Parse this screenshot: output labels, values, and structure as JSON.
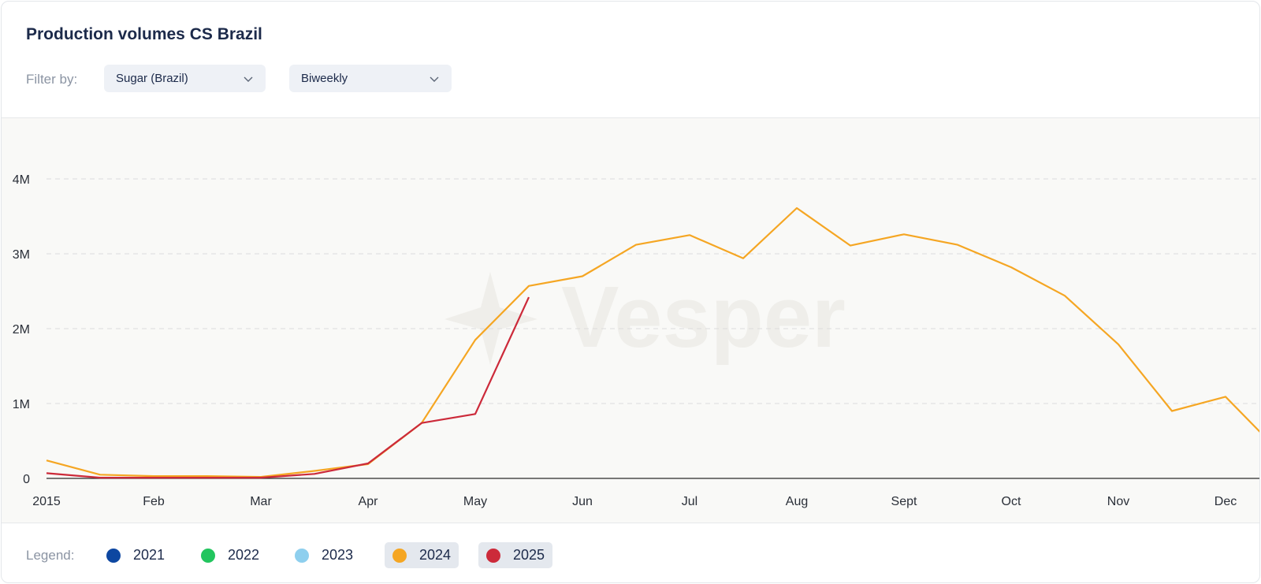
{
  "header": {
    "title": "Production volumes CS Brazil",
    "filter_label": "Filter by:",
    "product_select": "Sugar (Brazil)",
    "period_select": "Biweekly"
  },
  "watermark": "Vesper",
  "legend": {
    "label": "Legend:",
    "items": [
      {
        "label": "2021",
        "color": "#0d47a1",
        "active": false
      },
      {
        "label": "2022",
        "color": "#22c55e",
        "active": false
      },
      {
        "label": "2023",
        "color": "#8ecfee",
        "active": false
      },
      {
        "label": "2024",
        "color": "#f5a623",
        "active": true
      },
      {
        "label": "2025",
        "color": "#cc2a3a",
        "active": true
      }
    ]
  },
  "chart_data": {
    "type": "line",
    "title": "Production volumes CS Brazil",
    "xlabel": "",
    "ylabel": "",
    "x_ticks": [
      "2015",
      "Feb",
      "Mar",
      "Apr",
      "May",
      "Jun",
      "Jul",
      "Aug",
      "Sept",
      "Oct",
      "Nov",
      "Dec"
    ],
    "y_ticks": [
      "0",
      "1M",
      "2M",
      "3M",
      "4M"
    ],
    "ylim": [
      0,
      4700000
    ],
    "grid": "horizontal dashed",
    "series": [
      {
        "name": "2024",
        "color": "#f5a623",
        "x": [
          0,
          0.5,
          1,
          1.5,
          2,
          2.5,
          3,
          3.5,
          4,
          4.5,
          5,
          5.5,
          6,
          6.5,
          7,
          7.5,
          8,
          8.5,
          9,
          9.5,
          10,
          10.5,
          11,
          11.5
        ],
        "values": [
          240000,
          50000,
          30000,
          30000,
          20000,
          100000,
          190000,
          740000,
          1850000,
          2570000,
          2700000,
          3120000,
          3250000,
          2940000,
          3610000,
          3110000,
          3260000,
          3120000,
          2820000,
          2440000,
          1790000,
          900000,
          1090000,
          360000
        ]
      },
      {
        "name": "2025",
        "color": "#cc2a3a",
        "x": [
          0,
          0.5,
          1,
          1.5,
          2,
          2.5,
          3,
          3.5,
          4,
          4.5
        ],
        "values": [
          70000,
          10000,
          10000,
          10000,
          10000,
          60000,
          200000,
          740000,
          860000,
          2420000
        ]
      }
    ]
  }
}
